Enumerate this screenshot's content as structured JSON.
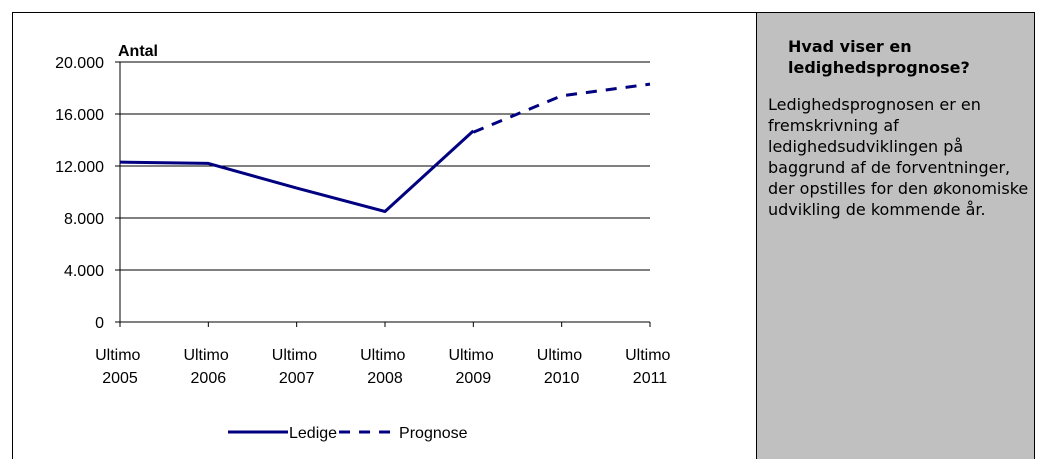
{
  "chart_data": {
    "type": "line",
    "y_label": "Antal",
    "categories": [
      "Ultimo 2005",
      "Ultimo 2006",
      "Ultimo 2007",
      "Ultimo 2008",
      "Ultimo 2009",
      "Ultimo 2010",
      "Ultimo 2011"
    ],
    "series": [
      {
        "name": "Ledige",
        "color": "#000080",
        "dashed": false,
        "values": [
          12300,
          12200,
          10300,
          8500,
          14700,
          null,
          null
        ]
      },
      {
        "name": "Prognose",
        "color": "#000080",
        "dashed": true,
        "values": [
          null,
          null,
          null,
          null,
          14600,
          17400,
          18300
        ]
      }
    ],
    "ylim": [
      0,
      20000
    ],
    "yticks": [
      0,
      {
        "value": 4000,
        "label": "4.000"
      },
      {
        "value": 8000,
        "label": "8.000"
      },
      {
        "value": 12000,
        "label": "12.000"
      },
      {
        "value": 16000,
        "label": "16.000"
      },
      {
        "value": 20000,
        "label": "20.000"
      }
    ],
    "grid": true,
    "legend": "bottom"
  },
  "sidebar": {
    "title": "Hvad viser en ledighedsprognose?",
    "text": "Ledighedsprognosen er en fremskrivning af ledighedsudviklingen på baggrund af de forventninger, der opstilles for den økonomiske udvikling de kommende år."
  }
}
